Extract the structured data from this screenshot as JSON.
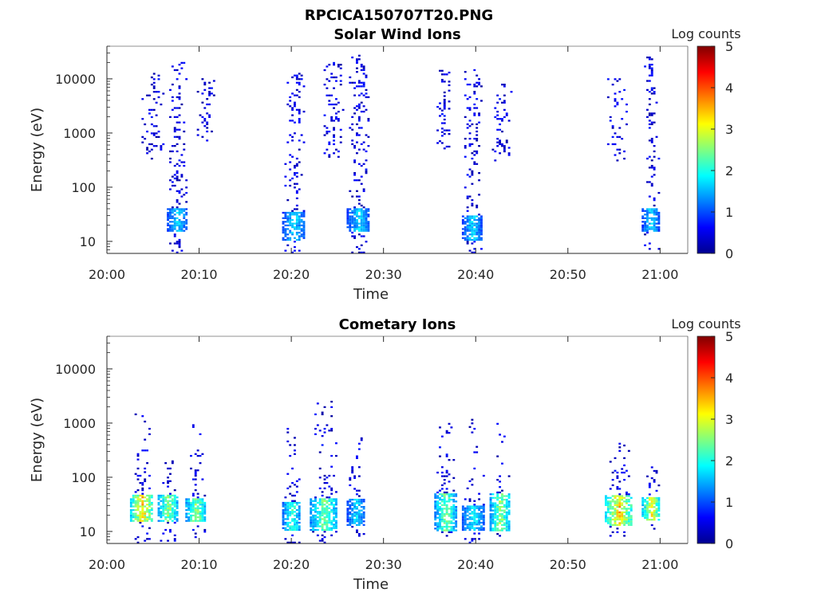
{
  "figure_title": "RPCICA150707T20.PNG",
  "chart_data": [
    {
      "type": "heatmap",
      "title": "Solar Wind Ions",
      "xlabel": "Time",
      "ylabel": "Energy (eV)",
      "x_scale": "time",
      "y_scale": "log",
      "x_range_minutes": [
        0,
        63
      ],
      "ylim": [
        6,
        40000
      ],
      "x_ticks": [
        "20:00",
        "20:10",
        "20:20",
        "20:30",
        "20:40",
        "20:50",
        "21:00"
      ],
      "y_ticks": [
        "10",
        "100",
        "1000",
        "10000"
      ],
      "colorbar": {
        "label": "Log counts",
        "range": [
          0,
          5
        ],
        "ticks": [
          "0",
          "1",
          "2",
          "3",
          "4",
          "5"
        ],
        "colormap": "jet"
      },
      "bursts": [
        {
          "time_range": [
            "20:03:30",
            "20:06:10"
          ],
          "energy_range_eV": [
            300,
            12000
          ],
          "peak_log_counts": 1,
          "note": "sparse high-energy"
        },
        {
          "time_range": [
            "20:06:30",
            "20:08:40"
          ],
          "energy_range_eV": [
            6,
            20000
          ],
          "peak_log_counts": 2,
          "low_energy_core_eV": [
            15,
            40
          ]
        },
        {
          "time_range": [
            "20:09:30",
            "20:11:40"
          ],
          "energy_range_eV": [
            700,
            10000
          ],
          "peak_log_counts": 1
        },
        {
          "time_range": [
            "20:19:00",
            "20:21:30"
          ],
          "energy_range_eV": [
            6,
            15000
          ],
          "peak_log_counts": 2,
          "low_energy_core_eV": [
            10,
            35
          ]
        },
        {
          "time_range": [
            "20:23:00",
            "20:25:40"
          ],
          "energy_range_eV": [
            300,
            20000
          ],
          "peak_log_counts": 1
        },
        {
          "time_range": [
            "20:26:00",
            "20:28:30"
          ],
          "energy_range_eV": [
            6,
            30000
          ],
          "peak_log_counts": 2,
          "low_energy_core_eV": [
            15,
            40
          ]
        },
        {
          "time_range": [
            "20:35:30",
            "20:37:30"
          ],
          "energy_range_eV": [
            500,
            15000
          ],
          "peak_log_counts": 1
        },
        {
          "time_range": [
            "20:38:30",
            "20:40:40"
          ],
          "energy_range_eV": [
            6,
            15000
          ],
          "peak_log_counts": 2,
          "low_energy_core_eV": [
            10,
            30
          ]
        },
        {
          "time_range": [
            "20:41:30",
            "20:44:00"
          ],
          "energy_range_eV": [
            300,
            8000
          ],
          "peak_log_counts": 1
        },
        {
          "time_range": [
            "20:54:00",
            "20:56:30"
          ],
          "energy_range_eV": [
            300,
            10000
          ],
          "peak_log_counts": 1
        },
        {
          "time_range": [
            "20:58:00",
            "20:59:50"
          ],
          "energy_range_eV": [
            6,
            25000
          ],
          "peak_log_counts": 2,
          "low_energy_core_eV": [
            15,
            40
          ]
        }
      ]
    },
    {
      "type": "heatmap",
      "title": "Cometary Ions",
      "xlabel": "Time",
      "ylabel": "Energy (eV)",
      "x_scale": "time",
      "y_scale": "log",
      "x_range_minutes": [
        0,
        63
      ],
      "ylim": [
        6,
        40000
      ],
      "x_ticks": [
        "20:00",
        "20:10",
        "20:20",
        "20:30",
        "20:40",
        "20:50",
        "21:00"
      ],
      "y_ticks": [
        "10",
        "100",
        "1000",
        "10000"
      ],
      "colorbar": {
        "label": "Log counts",
        "range": [
          0,
          5
        ],
        "ticks": [
          "0",
          "1",
          "2",
          "3",
          "4",
          "5"
        ],
        "colormap": "jet"
      },
      "bursts": [
        {
          "time_range": [
            "20:02:30",
            "20:05:00"
          ],
          "energy_range_eV": [
            6,
            1500
          ],
          "peak_log_counts": 3.8,
          "core_eV": [
            15,
            45
          ]
        },
        {
          "time_range": [
            "20:05:30",
            "20:07:40"
          ],
          "energy_range_eV": [
            6,
            300
          ],
          "peak_log_counts": 3,
          "core_eV": [
            15,
            45
          ]
        },
        {
          "time_range": [
            "20:08:30",
            "20:10:40"
          ],
          "energy_range_eV": [
            6,
            1000
          ],
          "peak_log_counts": 3,
          "core_eV": [
            15,
            40
          ]
        },
        {
          "time_range": [
            "20:19:00",
            "20:21:00"
          ],
          "energy_range_eV": [
            6,
            800
          ],
          "peak_log_counts": 2.5,
          "core_eV": [
            10,
            35
          ]
        },
        {
          "time_range": [
            "20:22:00",
            "20:25:00"
          ],
          "energy_range_eV": [
            6,
            2400
          ],
          "peak_log_counts": 2.8,
          "core_eV": [
            10,
            40
          ]
        },
        {
          "time_range": [
            "20:26:00",
            "20:28:00"
          ],
          "energy_range_eV": [
            8,
            600
          ],
          "peak_log_counts": 2,
          "core_eV": [
            12,
            40
          ]
        },
        {
          "time_range": [
            "20:35:30",
            "20:37:50"
          ],
          "energy_range_eV": [
            8,
            1000
          ],
          "peak_log_counts": 2.8,
          "core_eV": [
            10,
            50
          ]
        },
        {
          "time_range": [
            "20:38:30",
            "20:40:50"
          ],
          "energy_range_eV": [
            6,
            1200
          ],
          "peak_log_counts": 2.2,
          "core_eV": [
            10,
            30
          ]
        },
        {
          "time_range": [
            "20:41:30",
            "20:43:40"
          ],
          "energy_range_eV": [
            8,
            1000
          ],
          "peak_log_counts": 3,
          "core_eV": [
            10,
            50
          ]
        },
        {
          "time_range": [
            "20:54:00",
            "20:57:00"
          ],
          "energy_range_eV": [
            8,
            500
          ],
          "peak_log_counts": 3.8,
          "core_eV": [
            12,
            45
          ]
        },
        {
          "time_range": [
            "20:58:00",
            "21:00:00"
          ],
          "energy_range_eV": [
            10,
            150
          ],
          "peak_log_counts": 3.5,
          "core_eV": [
            15,
            40
          ]
        }
      ]
    }
  ]
}
